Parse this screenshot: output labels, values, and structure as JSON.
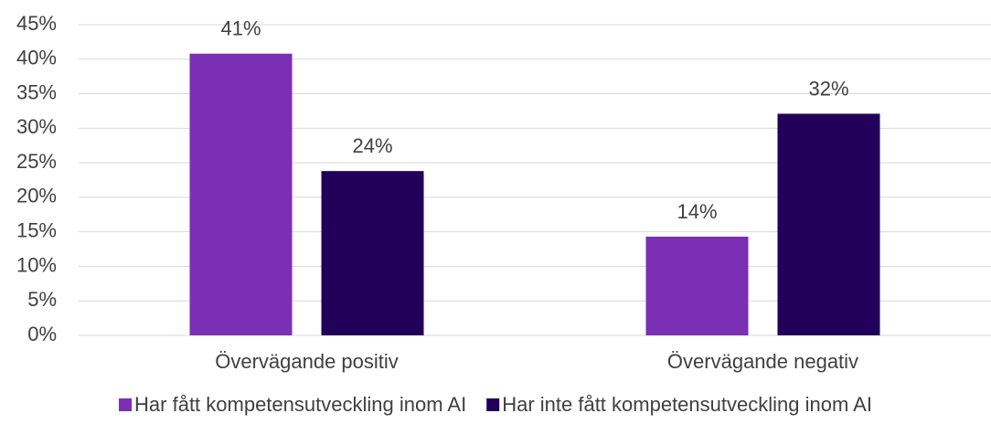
{
  "chart_data": {
    "type": "bar",
    "categories": [
      "Övervägande positiv",
      "Övervägande negativ"
    ],
    "series": [
      {
        "name": "Har fått kompetensutveckling inom AI",
        "color": "#7b2fb5",
        "values": [
          40.8,
          14.3
        ],
        "value_labels": [
          "41%",
          "14%"
        ]
      },
      {
        "name": "Har inte fått kompetensutveckling inom AI",
        "color": "#22005a",
        "values": [
          23.8,
          32.1
        ],
        "value_labels": [
          "24%",
          "32%"
        ]
      }
    ],
    "ylim": [
      0,
      45
    ],
    "yticks": [
      {
        "value": 0,
        "label": "0%"
      },
      {
        "value": 5,
        "label": "5%"
      },
      {
        "value": 10,
        "label": "10%"
      },
      {
        "value": 15,
        "label": "15%"
      },
      {
        "value": 20,
        "label": "20%"
      },
      {
        "value": 25,
        "label": "25%"
      },
      {
        "value": 30,
        "label": "30%"
      },
      {
        "value": 35,
        "label": "35%"
      },
      {
        "value": 40,
        "label": "40%"
      },
      {
        "value": 45,
        "label": "45%"
      }
    ],
    "grid": true,
    "legend": "bottom"
  }
}
